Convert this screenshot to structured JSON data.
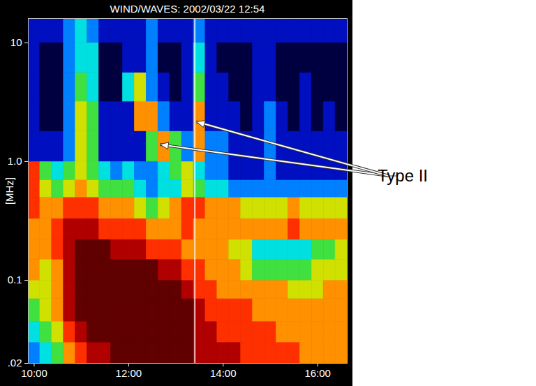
{
  "chart_data": {
    "type": "heatmap",
    "title": "WIND/WAVES: 2002/03/22 12:54",
    "y_label": "[MHz]",
    "log": "y",
    "xlim": [
      9.875,
      16.625
    ],
    "xticks": [
      {
        "value": 10,
        "label": "10:00"
      },
      {
        "value": 12,
        "label": "12:00"
      },
      {
        "value": 14,
        "label": "14:00"
      },
      {
        "value": 16,
        "label": "16:00"
      }
    ],
    "ylim": [
      0.02,
      16
    ],
    "yticks": [
      {
        "value": 0.02,
        "label": ".02"
      },
      0.1,
      {
        "value": 1,
        "label": "1.0"
      },
      10
    ],
    "time_bins": [
      9.875,
      10.125,
      10.375,
      10.625,
      10.875,
      11.125,
      11.375,
      11.625,
      11.875,
      12.125,
      12.375,
      12.625,
      12.875,
      13.125,
      13.375,
      13.625,
      13.875,
      14.125,
      14.375,
      14.625,
      14.875,
      15.125,
      15.375,
      15.625,
      15.875,
      16.125,
      16.375,
      16.625
    ],
    "frequency_bins": [
      0.02,
      0.03,
      0.045,
      0.07,
      0.1,
      0.15,
      0.22,
      0.33,
      0.5,
      0.7,
      1.0,
      1.8,
      3.2,
      5.6,
      10,
      16
    ],
    "intensity_range": [
      0,
      9
    ],
    "intensity": [
      [
        2,
        3,
        4,
        6,
        7,
        8,
        8,
        9,
        9,
        9,
        9,
        9,
        9,
        9,
        8,
        8,
        8,
        8,
        7,
        7,
        7,
        7,
        7,
        6,
        6,
        6,
        6
      ],
      [
        3,
        4,
        5,
        7,
        8,
        9,
        9,
        9,
        9,
        9,
        9,
        9,
        9,
        9,
        8,
        8,
        7,
        7,
        7,
        7,
        7,
        6,
        6,
        6,
        6,
        6,
        6
      ],
      [
        4,
        5,
        6,
        8,
        9,
        9,
        9,
        9,
        9,
        9,
        9,
        9,
        9,
        9,
        8,
        7,
        7,
        7,
        7,
        6,
        6,
        6,
        6,
        6,
        6,
        6,
        6
      ],
      [
        5,
        5,
        6,
        8,
        9,
        9,
        9,
        9,
        9,
        9,
        9,
        9,
        9,
        8,
        7,
        7,
        6,
        6,
        6,
        6,
        6,
        6,
        5,
        5,
        5,
        6,
        6
      ],
      [
        6,
        5,
        6,
        8,
        9,
        9,
        9,
        9,
        9,
        9,
        9,
        8,
        8,
        7,
        7,
        6,
        6,
        6,
        5,
        4,
        4,
        4,
        4,
        4,
        5,
        5,
        5
      ],
      [
        6,
        6,
        7,
        8,
        9,
        9,
        9,
        8,
        8,
        8,
        7,
        7,
        7,
        6,
        6,
        6,
        6,
        5,
        5,
        3,
        3,
        3,
        3,
        3,
        4,
        4,
        5
      ],
      [
        6,
        6,
        7,
        8,
        8,
        8,
        7,
        7,
        7,
        7,
        6,
        6,
        6,
        7,
        6,
        6,
        6,
        6,
        6,
        6,
        6,
        6,
        7,
        6,
        6,
        6,
        6
      ],
      [
        7,
        6,
        6,
        7,
        7,
        7,
        6,
        6,
        6,
        5,
        4,
        5,
        6,
        7,
        7,
        6,
        6,
        6,
        5,
        5,
        5,
        5,
        6,
        5,
        5,
        5,
        5
      ],
      [
        7,
        5,
        4,
        5,
        6,
        5,
        4,
        4,
        4,
        3,
        2,
        3,
        3,
        5,
        4,
        3,
        3,
        2,
        2,
        2,
        2,
        2,
        2,
        2,
        2,
        2,
        2
      ],
      [
        7,
        4,
        3,
        4,
        5,
        4,
        3,
        2,
        3,
        2,
        2,
        3,
        4,
        5,
        3,
        2,
        2,
        1,
        1,
        1,
        2,
        1,
        1,
        1,
        1,
        1,
        1
      ],
      [
        1,
        1,
        1,
        2,
        5,
        4,
        1,
        1,
        1,
        1,
        4,
        6,
        4,
        2,
        6,
        2,
        2,
        1,
        1,
        1,
        2,
        1,
        1,
        1,
        1,
        1,
        1
      ],
      [
        1,
        0,
        0,
        2,
        5,
        4,
        1,
        1,
        1,
        6,
        6,
        2,
        1,
        1,
        6,
        1,
        1,
        1,
        0,
        1,
        2,
        1,
        0,
        1,
        0,
        1,
        0
      ],
      [
        1,
        0,
        0,
        2,
        4,
        3,
        0,
        0,
        3,
        5,
        2,
        1,
        0,
        1,
        4,
        1,
        1,
        0,
        0,
        1,
        1,
        0,
        0,
        1,
        0,
        0,
        0
      ],
      [
        1,
        0,
        0,
        2,
        3,
        3,
        0,
        0,
        1,
        1,
        2,
        0,
        0,
        1,
        3,
        1,
        0,
        0,
        0,
        1,
        1,
        0,
        0,
        0,
        0,
        0,
        0
      ],
      [
        1,
        1,
        1,
        2,
        3,
        2,
        1,
        1,
        1,
        1,
        2,
        1,
        1,
        1,
        2,
        1,
        1,
        1,
        1,
        1,
        1,
        1,
        1,
        1,
        1,
        1,
        1
      ]
    ],
    "vertical_line": 13.4,
    "annotations": [
      {
        "text": "Type II",
        "points": [
          [
            12.67,
            1.38
          ],
          [
            13.44,
            2.15
          ]
        ]
      }
    ]
  }
}
